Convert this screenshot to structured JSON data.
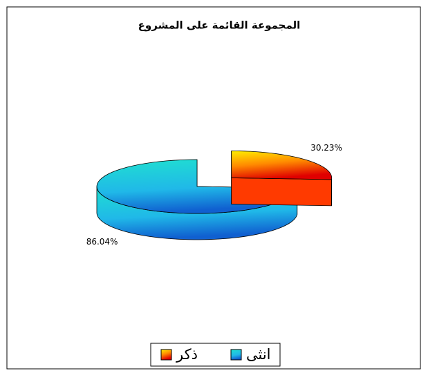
{
  "chart_data": {
    "type": "pie3d",
    "title": "المجموعة القائمة على المشروع",
    "categories": [
      "ذكر",
      "انثى"
    ],
    "values": [
      30.23,
      86.04
    ],
    "value_labels": [
      "30.23%",
      "86.04%"
    ],
    "colors": [
      "#ff3a00",
      "#1ab0e8"
    ],
    "legend": "bottom"
  }
}
